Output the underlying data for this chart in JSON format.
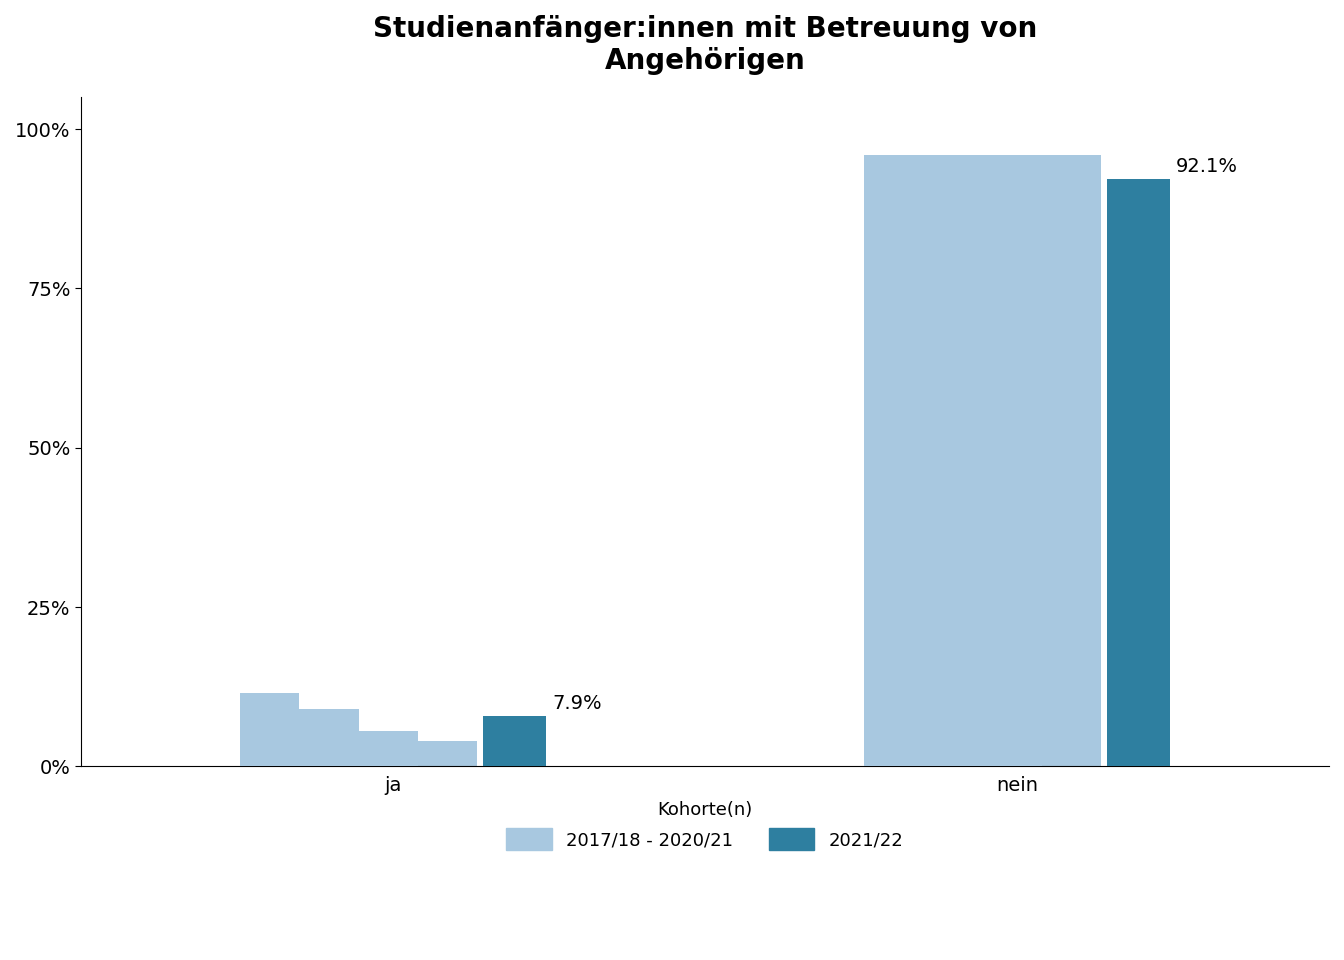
{
  "title": "Studienanfänger:innen mit Betreuung von\nAngehörigen",
  "categories": [
    "ja",
    "nein"
  ],
  "color_light": "#a8c8e0",
  "color_dark": "#2e7fa0",
  "ja_cohorts": [
    4.0,
    5.5,
    9.0,
    11.5
  ],
  "nein_cohorts": [
    96.0,
    94.5,
    91.0,
    88.5
  ],
  "ja_2122": 7.9,
  "nein_2122": 92.1,
  "label_ja": "7.9%",
  "label_nein": "92.1%",
  "legend_label_light": "2017/18 - 2020/21",
  "legend_label_dark": "2021/22",
  "legend_title": "Kohorte(n)",
  "yticks": [
    0,
    25,
    50,
    75,
    100
  ],
  "yticklabels": [
    "0%",
    "25%",
    "50%",
    "75%",
    "100%"
  ],
  "background_color": "#ffffff",
  "title_fontsize": 20,
  "tick_fontsize": 14,
  "label_fontsize": 14,
  "legend_fontsize": 13
}
